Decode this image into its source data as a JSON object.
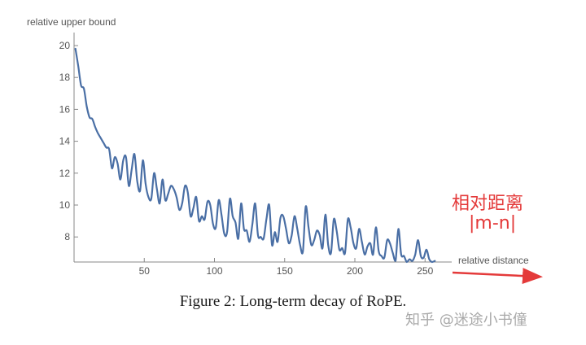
{
  "chart_data": {
    "type": "line",
    "title": "",
    "xlabel": "relative distance",
    "ylabel": "relative upper bound",
    "xlim": [
      0,
      258
    ],
    "ylim": [
      6.6,
      20.6
    ],
    "x_ticks": [
      50,
      100,
      150,
      200,
      250
    ],
    "y_ticks": [
      8,
      10,
      12,
      14,
      16,
      18,
      20
    ],
    "grid": false,
    "colors": {
      "line": "#4a6fa5",
      "axis": "#888888",
      "annotation": "#e43a3a"
    },
    "series": [
      {
        "x": [
          1,
          3,
          5,
          7,
          9,
          11,
          13,
          15,
          17,
          19,
          21,
          23,
          25,
          27,
          29,
          31,
          33,
          35,
          37,
          39,
          41,
          43,
          45,
          47,
          49,
          51,
          53,
          55,
          57,
          59,
          61,
          63,
          65,
          67,
          69,
          71,
          73,
          75,
          77,
          79,
          81,
          83,
          85,
          87,
          89,
          91,
          93,
          95,
          97,
          99,
          101,
          103,
          105,
          107,
          109,
          111,
          113,
          115,
          117,
          119,
          121,
          123,
          125,
          127,
          129,
          131,
          133,
          135,
          137,
          139,
          141,
          143,
          145,
          147,
          149,
          151,
          153,
          155,
          157,
          159,
          161,
          163,
          165,
          167,
          169,
          171,
          173,
          175,
          177,
          179,
          181,
          183,
          185,
          187,
          189,
          191,
          193,
          195,
          197,
          199,
          201,
          203,
          205,
          207,
          209,
          211,
          213,
          215,
          217,
          219,
          221,
          223,
          225,
          227,
          229,
          231,
          233,
          235,
          237,
          239,
          241,
          243,
          245,
          247,
          249,
          251,
          253,
          255,
          257
        ],
        "values": [
          19.8,
          18.7,
          17.5,
          17.3,
          16.2,
          15.5,
          15.4,
          14.9,
          14.5,
          14.2,
          13.9,
          13.6,
          13.5,
          12.3,
          13.0,
          12.6,
          11.6,
          12.8,
          13.0,
          11.2,
          12.2,
          13.2,
          11.5,
          10.9,
          12.8,
          11.3,
          10.5,
          10.4,
          12.0,
          11.0,
          10.1,
          11.6,
          10.3,
          10.7,
          11.2,
          11.0,
          10.5,
          9.7,
          10.1,
          11.2,
          10.8,
          9.3,
          9.8,
          10.5,
          9.0,
          9.3,
          9.1,
          10.2,
          10.0,
          8.8,
          8.6,
          10.3,
          9.4,
          8.2,
          8.3,
          10.4,
          9.3,
          8.9,
          7.9,
          10.1,
          8.5,
          8.4,
          7.7,
          8.8,
          10.1,
          8.1,
          8.0,
          7.9,
          9.1,
          10.0,
          7.5,
          8.3,
          7.7,
          9.2,
          9.3,
          8.5,
          7.6,
          8.1,
          9.3,
          8.5,
          7.5,
          7.1,
          9.9,
          8.6,
          7.5,
          7.8,
          8.4,
          8.1,
          7.3,
          9.4,
          7.5,
          7.0,
          9.1,
          8.4,
          7.2,
          7.3,
          7.0,
          9.1,
          8.6,
          7.6,
          7.3,
          8.5,
          7.7,
          6.9,
          7.4,
          7.6,
          6.9,
          8.6,
          7.1,
          6.8,
          6.7,
          7.8,
          7.6,
          7.0,
          6.5,
          8.5,
          6.9,
          6.8,
          6.4,
          6.6,
          6.5,
          6.9,
          7.8,
          6.8,
          6.7,
          7.2,
          6.6,
          6.4,
          6.5
        ]
      }
    ]
  },
  "annotation": {
    "line1": "相对距离",
    "line2": "|m-n|"
  },
  "caption": "Figure 2: Long-term decay of RoPE.",
  "watermark": "知乎 @迷途小书僮"
}
